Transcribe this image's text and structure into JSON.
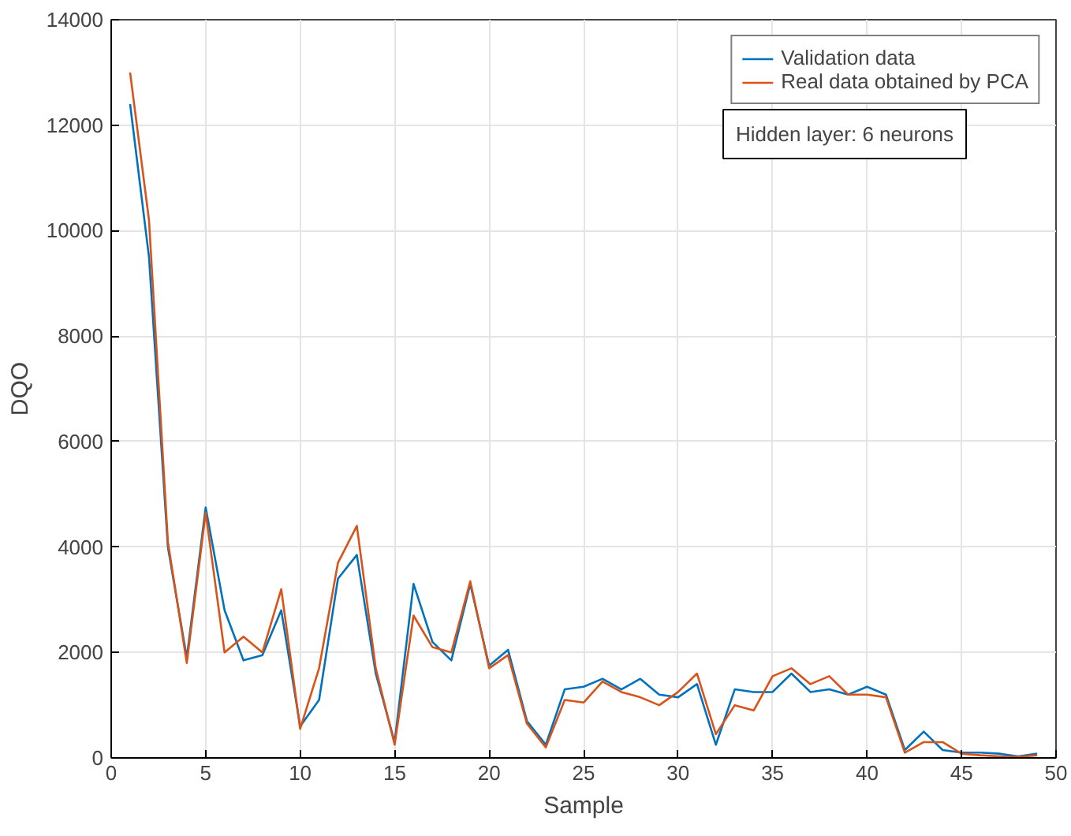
{
  "chart_data": {
    "type": "line",
    "xlabel": "Sample",
    "ylabel": "DQO",
    "x": [
      1,
      2,
      3,
      4,
      5,
      6,
      7,
      8,
      9,
      10,
      11,
      12,
      13,
      14,
      15,
      16,
      17,
      18,
      19,
      20,
      21,
      22,
      23,
      24,
      25,
      26,
      27,
      28,
      29,
      30,
      31,
      32,
      33,
      34,
      35,
      36,
      37,
      38,
      39,
      40,
      41,
      42,
      43,
      44,
      45,
      46,
      47,
      48,
      49
    ],
    "series": [
      {
        "name": "Validation data",
        "color": "#0072bd",
        "values": [
          12400,
          9500,
          4000,
          1900,
          4750,
          2800,
          1850,
          1950,
          2800,
          600,
          1100,
          3400,
          3850,
          1600,
          300,
          3300,
          2200,
          1850,
          3300,
          1750,
          2050,
          700,
          250,
          1300,
          1350,
          1500,
          1300,
          1500,
          1200,
          1150,
          1400,
          250,
          1300,
          1250,
          1250,
          1600,
          1250,
          1300,
          1200,
          1350,
          1200,
          150,
          500,
          150,
          100,
          100,
          80,
          30,
          80
        ]
      },
      {
        "name": "Real data obtained by PCA",
        "color": "#d95319",
        "values": [
          13000,
          10200,
          4100,
          1800,
          4650,
          2000,
          2300,
          2000,
          3200,
          550,
          1700,
          3700,
          4400,
          1700,
          250,
          2700,
          2100,
          2000,
          3350,
          1700,
          1950,
          650,
          200,
          1100,
          1050,
          1450,
          1250,
          1150,
          1000,
          1250,
          1600,
          450,
          1000,
          900,
          1550,
          1700,
          1400,
          1550,
          1200,
          1200,
          1150,
          100,
          300,
          300,
          80,
          50,
          30,
          20,
          50
        ]
      }
    ],
    "xlim": [
      0,
      50
    ],
    "xticks": [
      0,
      5,
      10,
      15,
      20,
      25,
      30,
      35,
      40,
      45,
      50
    ],
    "ylim": [
      0,
      14000
    ],
    "yticks": [
      0,
      2000,
      4000,
      6000,
      8000,
      10000,
      12000,
      14000
    ],
    "grid": true,
    "legend": "top right",
    "annotations": [
      "Hidden layer: 6 neurons"
    ]
  }
}
